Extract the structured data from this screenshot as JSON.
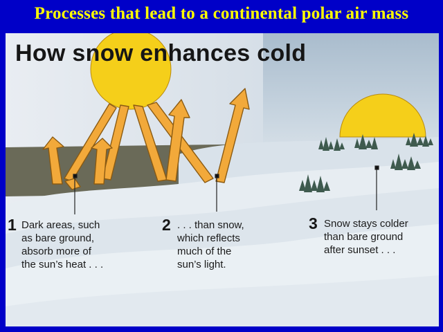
{
  "title": "Processes that lead to a continental polar air mass",
  "diagram": {
    "heading": "How snow enhances cold",
    "steps": [
      {
        "number": "1",
        "lines": [
          "Dark areas, such",
          "as bare ground,",
          "absorb more of",
          "the sun’s heat . . ."
        ]
      },
      {
        "number": "2",
        "lines": [
          ". . . than snow,",
          "which reflects",
          "much of the",
          "sun’s light."
        ]
      },
      {
        "number": "3",
        "lines": [
          "Snow stays colder",
          "than bare ground",
          "after sunset . . ."
        ]
      }
    ]
  },
  "colors": {
    "slide_background": "#0000c8",
    "title": "#ffff00",
    "sun": "#f5cf1a",
    "arrows": "#f2a93a",
    "ground": "#6a6a58",
    "trees": "#3e5a4e"
  }
}
